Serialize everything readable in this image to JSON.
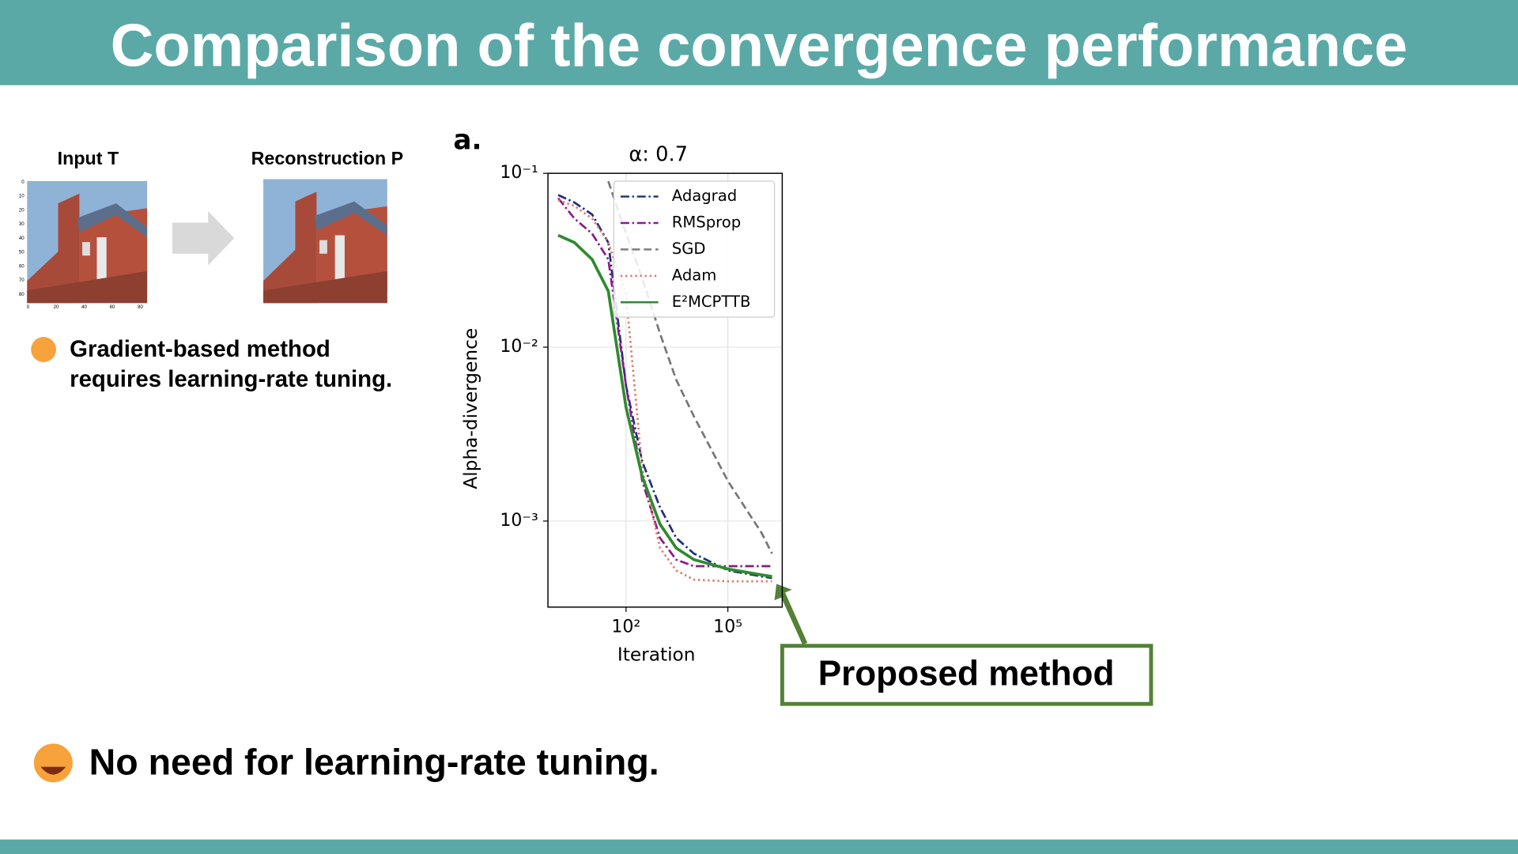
{
  "header": {
    "title": "Comparison of the convergence performance"
  },
  "figure": {
    "input_label": "Input T",
    "output_label": "Reconstruction P",
    "input_yticks": [
      "0",
      "10",
      "20",
      "30",
      "40",
      "50",
      "60",
      "70",
      "80"
    ],
    "input_xticks": [
      "0",
      "20",
      "40",
      "60",
      "80"
    ]
  },
  "notes": {
    "gradient": [
      "Gradient-based method",
      "requires learning-rate tuning."
    ],
    "proposed": "No need for learning-rate tuning.",
    "callout": "Proposed method"
  },
  "chart_data": {
    "type": "line",
    "panel_label": "a.",
    "title": "α: 0.7",
    "x_label": "Iteration",
    "y_label": "Alpha-divergence",
    "xscale": "log",
    "yscale": "log",
    "grid": true,
    "legend": "upper right",
    "xlim": [
      0.5,
      4000000
    ],
    "ylim": [
      0.00032,
      0.1
    ],
    "xticks": [
      {
        "value": 100,
        "label": "10²"
      },
      {
        "value": 100000,
        "label": "10⁵"
      }
    ],
    "yticks": [
      {
        "value": 0.1,
        "label": "10⁻¹"
      },
      {
        "value": 0.01,
        "label": "10⁻²"
      },
      {
        "value": 0.001,
        "label": "10⁻³"
      }
    ],
    "x": [
      1,
      3,
      10,
      30,
      100,
      300,
      1000,
      3000,
      10000,
      100000,
      1000000,
      2000000
    ],
    "series": [
      {
        "name": "Adagrad",
        "color": "#1f2f7a",
        "linestyle": "dashdot",
        "values": [
          0.075,
          0.068,
          0.058,
          0.04,
          0.006,
          0.0022,
          0.0012,
          0.0008,
          0.00065,
          0.00052,
          0.00048,
          0.00047
        ]
      },
      {
        "name": "RMSprop",
        "color": "#8b1a8b",
        "linestyle": "dashdot",
        "values": [
          0.072,
          0.055,
          0.045,
          0.032,
          0.006,
          0.0017,
          0.0008,
          0.0006,
          0.00055,
          0.00055,
          0.00055,
          0.00055
        ]
      },
      {
        "name": "SGD",
        "color": "#777777",
        "linestyle": "dashed",
        "values": [
          null,
          null,
          null,
          0.09,
          0.045,
          0.025,
          0.012,
          0.0065,
          0.004,
          0.0017,
          0.00085,
          0.00065
        ]
      },
      {
        "name": "Adam",
        "color": "#e07b6f",
        "linestyle": "dotted",
        "values": [
          0.07,
          0.065,
          0.055,
          0.04,
          0.02,
          0.002,
          0.0007,
          0.00052,
          0.00046,
          0.00045,
          0.00045,
          0.00045
        ]
      },
      {
        "name": "E²MCPTTB",
        "color": "#2e8b2e",
        "linestyle": "solid",
        "values": [
          0.044,
          0.04,
          0.032,
          0.021,
          0.0045,
          0.0018,
          0.00096,
          0.0007,
          0.0006,
          0.00053,
          0.00049,
          0.00048
        ]
      }
    ]
  }
}
